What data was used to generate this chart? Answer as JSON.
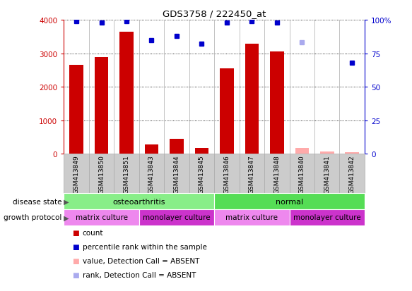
{
  "title": "GDS3758 / 222450_at",
  "samples": [
    "GSM413849",
    "GSM413850",
    "GSM413851",
    "GSM413843",
    "GSM413844",
    "GSM413845",
    "GSM413846",
    "GSM413847",
    "GSM413848",
    "GSM413840",
    "GSM413841",
    "GSM413842"
  ],
  "counts": [
    2650,
    2880,
    3640,
    290,
    450,
    170,
    2540,
    3280,
    3050,
    null,
    null,
    null
  ],
  "counts_absent": [
    null,
    null,
    null,
    null,
    null,
    null,
    null,
    null,
    null,
    180,
    80,
    60
  ],
  "percentile_ranks": [
    99,
    98,
    99,
    85,
    88,
    82,
    98,
    99,
    98,
    null,
    null,
    68
  ],
  "percentile_ranks_absent": [
    null,
    null,
    null,
    null,
    null,
    null,
    null,
    null,
    null,
    83,
    null,
    null
  ],
  "bar_color": "#cc0000",
  "bar_absent_color": "#ffaaaa",
  "dot_color": "#0000cc",
  "dot_absent_color": "#aaaaee",
  "ylim_left": [
    0,
    4000
  ],
  "ylim_right": [
    0,
    100
  ],
  "yticks_left": [
    0,
    1000,
    2000,
    3000,
    4000
  ],
  "yticks_right": [
    0,
    25,
    50,
    75,
    100
  ],
  "ytick_labels_right": [
    "0",
    "25",
    "50",
    "75",
    "100%"
  ],
  "disease_state_groups": [
    {
      "label": "osteoarthritis",
      "start": 0,
      "end": 6,
      "color": "#88ee88"
    },
    {
      "label": "normal",
      "start": 6,
      "end": 12,
      "color": "#55dd55"
    }
  ],
  "growth_protocol_groups": [
    {
      "label": "matrix culture",
      "start": 0,
      "end": 3,
      "color": "#ee88ee"
    },
    {
      "label": "monolayer culture",
      "start": 3,
      "end": 6,
      "color": "#cc33cc"
    },
    {
      "label": "matrix culture",
      "start": 6,
      "end": 9,
      "color": "#ee88ee"
    },
    {
      "label": "monolayer culture",
      "start": 9,
      "end": 12,
      "color": "#cc33cc"
    }
  ],
  "legend_items": [
    {
      "label": "count",
      "color": "#cc0000"
    },
    {
      "label": "percentile rank within the sample",
      "color": "#0000cc"
    },
    {
      "label": "value, Detection Call = ABSENT",
      "color": "#ffaaaa"
    },
    {
      "label": "rank, Detection Call = ABSENT",
      "color": "#aaaaee"
    }
  ],
  "disease_state_label": "disease state",
  "growth_protocol_label": "growth protocol",
  "tick_color_left": "#cc0000",
  "tick_color_right": "#0000cc",
  "bar_width": 0.55,
  "xtick_bg_color": "#cccccc",
  "xtick_border_color": "#aaaaaa"
}
